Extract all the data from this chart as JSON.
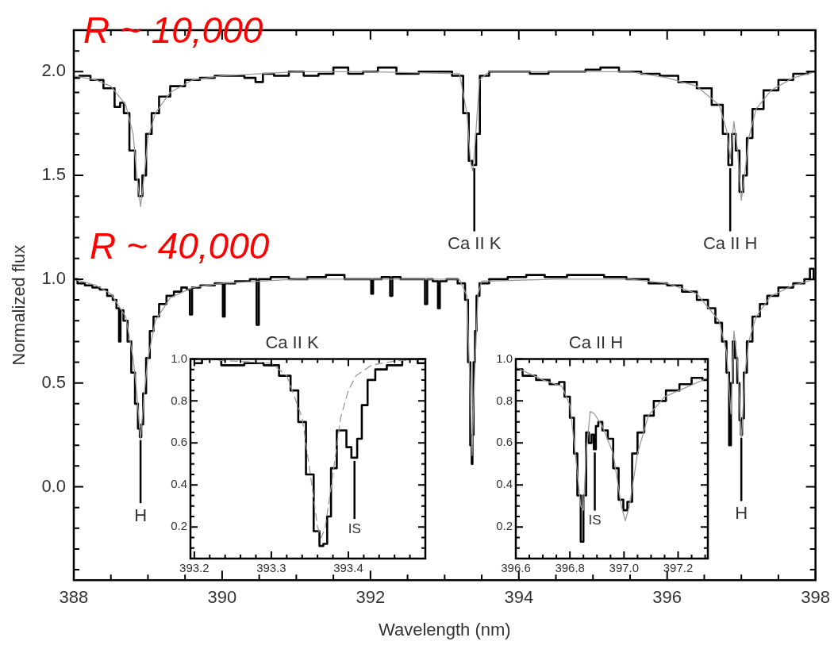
{
  "chart_data": [
    {
      "type": "line",
      "xlabel": "Wavelength (nm)",
      "ylabel": "Normalized flux",
      "xlim": [
        388,
        398
      ],
      "ylim": [
        -0.45,
        2.2
      ],
      "xticks": [
        388,
        {
          "value": 388.5,
          "label": null
        },
        {
          "value": 389,
          "label": null
        },
        {
          "value": 389.5,
          "label": null
        },
        390,
        {
          "value": 390.5,
          "label": null
        },
        {
          "value": 391,
          "label": null
        },
        {
          "value": 391.5,
          "label": null
        },
        392,
        {
          "value": 392.5,
          "label": null
        },
        {
          "value": 393,
          "label": null
        },
        {
          "value": 393.5,
          "label": null
        },
        394,
        {
          "value": 394.5,
          "label": null
        },
        {
          "value": 395,
          "label": null
        },
        {
          "value": 395.5,
          "label": null
        },
        396,
        {
          "value": 396.5,
          "label": null
        },
        {
          "value": 397,
          "label": null
        },
        {
          "value": 397.5,
          "label": null
        },
        398
      ],
      "yticks": [
        {
          "value": -0.4,
          "label": null
        },
        {
          "value": -0.3,
          "label": null
        },
        {
          "value": -0.2,
          "label": null
        },
        {
          "value": -0.1,
          "label": null
        },
        {
          "value": 0,
          "label": "0.0"
        },
        {
          "value": 0.1,
          "label": null
        },
        {
          "value": 0.2,
          "label": null
        },
        {
          "value": 0.3,
          "label": null
        },
        {
          "value": 0.4,
          "label": null
        },
        0.5,
        {
          "value": 0.6,
          "label": null
        },
        {
          "value": 0.7,
          "label": null
        },
        {
          "value": 0.8,
          "label": null
        },
        {
          "value": 0.9,
          "label": null
        },
        {
          "value": 1,
          "label": "1.0"
        },
        {
          "value": 1.1,
          "label": null
        },
        {
          "value": 1.2,
          "label": null
        },
        {
          "value": 1.3,
          "label": null
        },
        {
          "value": 1.4,
          "label": null
        },
        1.5,
        {
          "value": 1.6,
          "label": null
        },
        {
          "value": 1.7,
          "label": null
        },
        {
          "value": 1.8,
          "label": null
        },
        {
          "value": 1.9,
          "label": null
        },
        {
          "value": 2,
          "label": "2.0"
        },
        {
          "value": 2.1,
          "label": null
        }
      ],
      "series": [
        {
          "type": "line",
          "color": "#999999",
          "x": [
            388.0,
            388.3,
            388.5,
            388.7,
            388.8,
            388.85,
            388.9,
            388.95,
            389.0,
            389.1,
            389.3,
            389.6,
            390.0,
            391.0,
            392.0,
            393.2,
            393.3,
            393.35,
            393.38,
            393.42,
            393.47,
            393.6,
            394.5,
            395.5,
            396.0,
            396.4,
            396.7,
            396.8,
            396.85,
            396.9,
            396.95,
            397.0,
            397.05,
            397.1,
            397.2,
            397.4,
            397.7,
            398.0
          ],
          "values": [
            1.98,
            1.96,
            1.93,
            1.84,
            1.7,
            1.5,
            1.35,
            1.5,
            1.68,
            1.8,
            1.9,
            1.96,
            1.98,
            2.0,
            2.0,
            1.99,
            1.8,
            1.56,
            1.52,
            1.7,
            1.96,
            2.0,
            2.0,
            2.0,
            1.97,
            1.93,
            1.84,
            1.72,
            1.58,
            1.76,
            1.62,
            1.38,
            1.52,
            1.68,
            1.82,
            1.91,
            1.97,
            2.0
          ]
        },
        {
          "type": "step",
          "color": "#000000",
          "x": [
            388.0,
            388.15,
            388.3,
            388.5,
            388.6,
            388.65,
            388.7,
            388.8,
            388.85,
            388.9,
            388.95,
            389.0,
            389.1,
            389.2,
            389.4,
            389.6,
            389.8,
            390.0,
            390.2,
            390.4,
            390.5,
            390.6,
            390.8,
            391.0,
            391.2,
            391.4,
            391.6,
            391.8,
            392.0,
            392.2,
            392.5,
            392.8,
            393.0,
            393.2,
            393.3,
            393.35,
            393.4,
            393.45,
            393.5,
            393.7,
            394.0,
            394.3,
            394.5,
            394.8,
            395.0,
            395.2,
            395.5,
            395.8,
            396.0,
            396.3,
            396.5,
            396.7,
            396.8,
            396.85,
            396.9,
            396.95,
            397.0,
            397.05,
            397.1,
            397.2,
            397.4,
            397.6,
            397.8,
            398.0
          ],
          "values": [
            1.97,
            1.98,
            1.96,
            1.92,
            1.83,
            1.85,
            1.8,
            1.62,
            1.48,
            1.4,
            1.5,
            1.7,
            1.8,
            1.88,
            1.93,
            1.96,
            1.97,
            1.98,
            1.98,
            1.97,
            1.95,
            1.99,
            1.98,
            2.0,
            1.98,
            1.99,
            2.02,
            1.99,
            2.0,
            2.02,
            1.99,
            2.0,
            2.0,
            1.98,
            1.8,
            1.57,
            1.55,
            1.7,
            1.98,
            2.0,
            2.0,
            1.99,
            2.0,
            2.0,
            2.01,
            2.02,
            2.0,
            1.99,
            1.98,
            1.95,
            1.92,
            1.84,
            1.7,
            1.55,
            1.7,
            1.62,
            1.42,
            1.5,
            1.68,
            1.82,
            1.91,
            1.96,
            1.99,
            2.0
          ]
        },
        {
          "type": "line",
          "color": "#999999",
          "x": [
            388.0,
            388.3,
            388.5,
            388.7,
            388.8,
            388.85,
            388.9,
            388.95,
            389.0,
            389.1,
            389.3,
            389.6,
            390.0,
            391.0,
            392.0,
            393.2,
            393.3,
            393.35,
            393.37,
            393.4,
            393.45,
            393.5,
            394.5,
            395.5,
            396.0,
            396.4,
            396.7,
            396.8,
            396.86,
            396.9,
            396.95,
            397.0,
            397.05,
            397.1,
            397.2,
            397.4,
            397.7,
            398.0
          ],
          "values": [
            1.0,
            0.97,
            0.93,
            0.82,
            0.62,
            0.45,
            0.23,
            0.45,
            0.62,
            0.8,
            0.91,
            0.96,
            0.98,
            1.0,
            1.0,
            1.0,
            0.92,
            0.4,
            0.15,
            0.5,
            0.93,
            0.99,
            1.0,
            1.0,
            0.98,
            0.93,
            0.8,
            0.65,
            0.35,
            0.75,
            0.6,
            0.22,
            0.55,
            0.7,
            0.82,
            0.92,
            0.97,
            1.0
          ]
        },
        {
          "type": "step",
          "color": "#000000",
          "x": [
            388.0,
            388.1,
            388.2,
            388.3,
            388.4,
            388.5,
            388.55,
            388.6,
            388.62,
            388.64,
            388.7,
            388.75,
            388.8,
            388.85,
            388.88,
            388.9,
            388.92,
            388.95,
            389.0,
            389.05,
            389.1,
            389.2,
            389.3,
            389.4,
            389.5,
            389.55,
            389.58,
            389.61,
            389.8,
            390.0,
            390.02,
            390.05,
            390.3,
            390.45,
            390.48,
            390.51,
            390.8,
            391.0,
            391.3,
            391.5,
            391.8,
            392.0,
            392.02,
            392.05,
            392.25,
            392.28,
            392.31,
            392.5,
            392.72,
            392.75,
            392.78,
            392.9,
            392.92,
            392.95,
            393.1,
            393.25,
            393.3,
            393.33,
            393.36,
            393.37,
            393.38,
            393.4,
            393.42,
            393.44,
            393.5,
            393.7,
            394.0,
            394.2,
            394.5,
            394.8,
            395.0,
            395.3,
            395.6,
            395.9,
            396.1,
            396.3,
            396.5,
            396.6,
            396.7,
            396.78,
            396.82,
            396.85,
            396.87,
            396.9,
            396.93,
            396.96,
            396.99,
            397.0,
            397.02,
            397.05,
            397.1,
            397.2,
            397.3,
            397.4,
            397.6,
            397.8,
            397.9,
            397.95,
            398.0
          ],
          "values": [
            1.0,
            0.98,
            0.97,
            0.96,
            0.95,
            0.92,
            0.9,
            0.86,
            0.7,
            0.85,
            0.8,
            0.7,
            0.55,
            0.4,
            0.28,
            0.24,
            0.3,
            0.45,
            0.62,
            0.75,
            0.82,
            0.88,
            0.92,
            0.94,
            0.96,
            0.95,
            0.83,
            0.96,
            0.97,
            0.98,
            0.82,
            0.98,
            0.99,
            1.0,
            0.78,
            1.0,
            1.01,
            1.0,
            1.01,
            1.02,
            1.0,
            1.0,
            0.93,
            1.0,
            1.01,
            0.92,
            1.01,
            1.0,
            1.0,
            0.88,
            1.0,
            0.99,
            0.86,
            0.99,
            1.0,
            0.98,
            0.9,
            0.6,
            0.2,
            0.11,
            0.25,
            0.6,
            0.75,
            0.92,
            0.98,
            1.0,
            1.01,
            1.02,
            1.01,
            1.02,
            1.02,
            1.01,
            1.0,
            0.98,
            0.97,
            0.94,
            0.9,
            0.86,
            0.79,
            0.7,
            0.55,
            0.2,
            0.5,
            0.7,
            0.62,
            0.5,
            0.32,
            0.25,
            0.33,
            0.55,
            0.7,
            0.82,
            0.88,
            0.92,
            0.96,
            0.98,
            1.0,
            1.05,
            1.0
          ]
        }
      ],
      "annotations": [
        "R ~ 10,000",
        "R ~ 40,000",
        {
          "text": "Ca II K",
          "x": 393.4,
          "y": 1.55
        },
        {
          "text": "Ca II H",
          "x": 396.85,
          "y": 1.55
        },
        {
          "text": "H",
          "x": 388.9,
          "y": 0.24
        },
        {
          "text": "H",
          "x": 397.0,
          "y": 0.25
        }
      ]
    },
    {
      "type": "line",
      "title": "Ca II K",
      "xlim": [
        393.195,
        393.5
      ],
      "ylim": [
        0.05,
        1.0
      ],
      "xticks": [
        {
          "value": 393.2,
          "label": "393.2"
        },
        {
          "value": 393.22,
          "label": null
        },
        {
          "value": 393.24,
          "label": null
        },
        {
          "value": 393.26,
          "label": null
        },
        {
          "value": 393.28,
          "label": null
        },
        {
          "value": 393.3,
          "label": "393.3"
        },
        {
          "value": 393.32,
          "label": null
        },
        {
          "value": 393.34,
          "label": null
        },
        {
          "value": 393.36,
          "label": null
        },
        {
          "value": 393.38,
          "label": null
        },
        {
          "value": 393.4,
          "label": "393.4"
        },
        {
          "value": 393.42,
          "label": null
        },
        {
          "value": 393.44,
          "label": null
        },
        {
          "value": 393.46,
          "label": null
        },
        {
          "value": 393.48,
          "label": null
        }
      ],
      "yticks": [
        {
          "value": 0.1,
          "label": null
        },
        {
          "value": 0.15,
          "label": null
        },
        0.2,
        {
          "value": 0.25,
          "label": null
        },
        {
          "value": 0.3,
          "label": null
        },
        {
          "value": 0.35,
          "label": null
        },
        0.4,
        {
          "value": 0.45,
          "label": null
        },
        {
          "value": 0.5,
          "label": null
        },
        {
          "value": 0.55,
          "label": null
        },
        0.6,
        {
          "value": 0.65,
          "label": null
        },
        {
          "value": 0.7,
          "label": null
        },
        {
          "value": 0.75,
          "label": null
        },
        0.8,
        {
          "value": 0.85,
          "label": null
        },
        {
          "value": 0.9,
          "label": null
        },
        {
          "value": 0.95,
          "label": null
        },
        {
          "value": 1.0,
          "label": "1.0"
        }
      ],
      "series": [
        {
          "type": "line",
          "color": "#999999",
          "line_style": "dashed",
          "x": [
            393.2,
            393.3,
            393.32,
            393.34,
            393.35,
            393.36,
            393.365,
            393.37,
            393.38,
            393.39,
            393.4,
            393.41,
            393.43,
            393.46,
            393.5
          ],
          "values": [
            1.0,
            0.98,
            0.92,
            0.72,
            0.47,
            0.2,
            0.15,
            0.2,
            0.45,
            0.72,
            0.85,
            0.92,
            0.97,
            0.99,
            1.0
          ]
        },
        {
          "type": "step",
          "color": "#000000",
          "x": [
            393.2,
            393.22,
            393.25,
            393.28,
            393.3,
            393.32,
            393.33,
            393.34,
            393.35,
            393.36,
            393.365,
            393.37,
            393.375,
            393.38,
            393.39,
            393.395,
            393.4,
            393.408,
            393.415,
            393.42,
            393.43,
            393.44,
            393.46,
            393.48,
            393.5
          ],
          "values": [
            0.98,
            1.0,
            0.97,
            0.98,
            0.97,
            0.92,
            0.85,
            0.7,
            0.45,
            0.18,
            0.11,
            0.12,
            0.25,
            0.48,
            0.66,
            0.66,
            0.58,
            0.53,
            0.62,
            0.78,
            0.9,
            0.95,
            0.97,
            1.0,
            0.98
          ]
        }
      ],
      "annotations": [
        {
          "text": "IS",
          "x": 393.408,
          "y": 0.53
        }
      ]
    },
    {
      "type": "line",
      "title": "Ca II H",
      "xlim": [
        396.6,
        397.31
      ],
      "ylim": [
        0.05,
        1.0
      ],
      "xticks": [
        {
          "value": 396.6,
          "label": "396.6"
        },
        {
          "value": 396.65,
          "label": null
        },
        {
          "value": 396.7,
          "label": null
        },
        {
          "value": 396.75,
          "label": null
        },
        {
          "value": 396.8,
          "label": "396.8"
        },
        {
          "value": 396.85,
          "label": null
        },
        {
          "value": 396.9,
          "label": null
        },
        {
          "value": 396.95,
          "label": null
        },
        {
          "value": 397.0,
          "label": "397.0"
        },
        {
          "value": 397.05,
          "label": null
        },
        {
          "value": 397.1,
          "label": null
        },
        {
          "value": 397.15,
          "label": null
        },
        {
          "value": 397.2,
          "label": "397.2"
        },
        {
          "value": 397.25,
          "label": null
        },
        {
          "value": 397.3,
          "label": null
        }
      ],
      "yticks": [
        {
          "value": 0.1,
          "label": null
        },
        {
          "value": 0.15,
          "label": null
        },
        0.2,
        {
          "value": 0.25,
          "label": null
        },
        {
          "value": 0.3,
          "label": null
        },
        {
          "value": 0.35,
          "label": null
        },
        0.4,
        {
          "value": 0.45,
          "label": null
        },
        {
          "value": 0.5,
          "label": null
        },
        {
          "value": 0.55,
          "label": null
        },
        0.6,
        {
          "value": 0.65,
          "label": null
        },
        {
          "value": 0.7,
          "label": null
        },
        {
          "value": 0.75,
          "label": null
        },
        0.8,
        {
          "value": 0.85,
          "label": null
        },
        {
          "value": 0.9,
          "label": null
        },
        {
          "value": 0.95,
          "label": null
        },
        {
          "value": 1.0,
          "label": "1.0"
        }
      ],
      "series": [
        {
          "type": "line",
          "color": "#999999",
          "x": [
            396.6,
            396.7,
            396.77,
            396.8,
            396.82,
            396.84,
            396.85,
            396.86,
            396.875,
            396.89,
            396.92,
            396.96,
            396.99,
            397.005,
            397.02,
            397.05,
            397.09,
            397.15,
            397.31
          ],
          "values": [
            0.96,
            0.9,
            0.87,
            0.78,
            0.55,
            0.3,
            0.28,
            0.55,
            0.75,
            0.74,
            0.68,
            0.55,
            0.3,
            0.23,
            0.3,
            0.55,
            0.73,
            0.82,
            0.91
          ]
        },
        {
          "type": "step",
          "color": "#000000",
          "x": [
            396.6,
            396.65,
            396.7,
            396.75,
            396.77,
            396.79,
            396.81,
            396.82,
            396.835,
            396.845,
            396.855,
            396.865,
            396.875,
            396.885,
            396.892,
            396.9,
            396.91,
            396.93,
            396.95,
            396.97,
            396.99,
            397.005,
            397.02,
            397.04,
            397.06,
            397.09,
            397.13,
            397.18,
            397.23,
            397.27,
            397.31
          ],
          "values": [
            0.95,
            0.92,
            0.9,
            0.88,
            0.89,
            0.82,
            0.72,
            0.55,
            0.35,
            0.13,
            0.35,
            0.65,
            0.6,
            0.64,
            0.57,
            0.68,
            0.7,
            0.66,
            0.62,
            0.48,
            0.33,
            0.28,
            0.32,
            0.55,
            0.65,
            0.73,
            0.8,
            0.85,
            0.88,
            0.91,
            0.9
          ]
        }
      ],
      "annotations": [
        {
          "text": "IS",
          "x": 396.892,
          "y": 0.57
        }
      ]
    }
  ]
}
